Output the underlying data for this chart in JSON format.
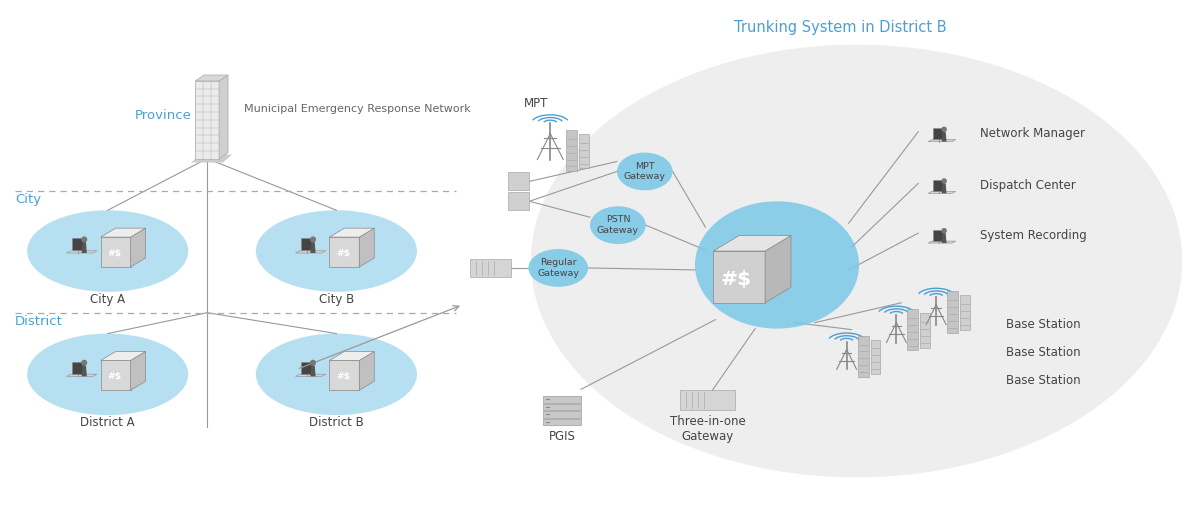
{
  "bg_color": "#ffffff",
  "blue_text_color": "#4a9fd5",
  "gray_text_color": "#666666",
  "dark_text_color": "#444444",
  "ellipse_fill": "#7bc8e8",
  "ellipse_alpha": 0.55,
  "big_ellipse_fill": "#e0e0e0",
  "big_ellipse_alpha": 0.55,
  "dashed_line_color": "#aaaaaa",
  "connect_line_color": "#999999",
  "title_text": "Trunking System in District B",
  "title_color": "#4a9fd5",
  "title_fontsize": 10.5,
  "label_fontsize": 8.5,
  "small_label_fontsize": 7.5,
  "blue_label_fontsize": 9.5,
  "province_label": "Province",
  "city_label": "City",
  "district_label": "District",
  "city_a_label": "City A",
  "city_b_label": "City B",
  "district_a_label": "District A",
  "district_b_label": "District B",
  "mpt_label": "MPT",
  "mpt_gateway_label": "MPT\nGateway",
  "pstn_gateway_label": "PSTN\nGateway",
  "regular_gateway_label": "Regular\nGateway",
  "pgis_label": "PGIS",
  "three_in_one_label": "Three-in-one\nGateway",
  "base_station_label": "Base Station",
  "network_manager_label": "Network Manager",
  "dispatch_center_label": "Dispatch Center",
  "system_recording_label": "System Recording",
  "municipal_label": "Municipal Emergency Response Network"
}
